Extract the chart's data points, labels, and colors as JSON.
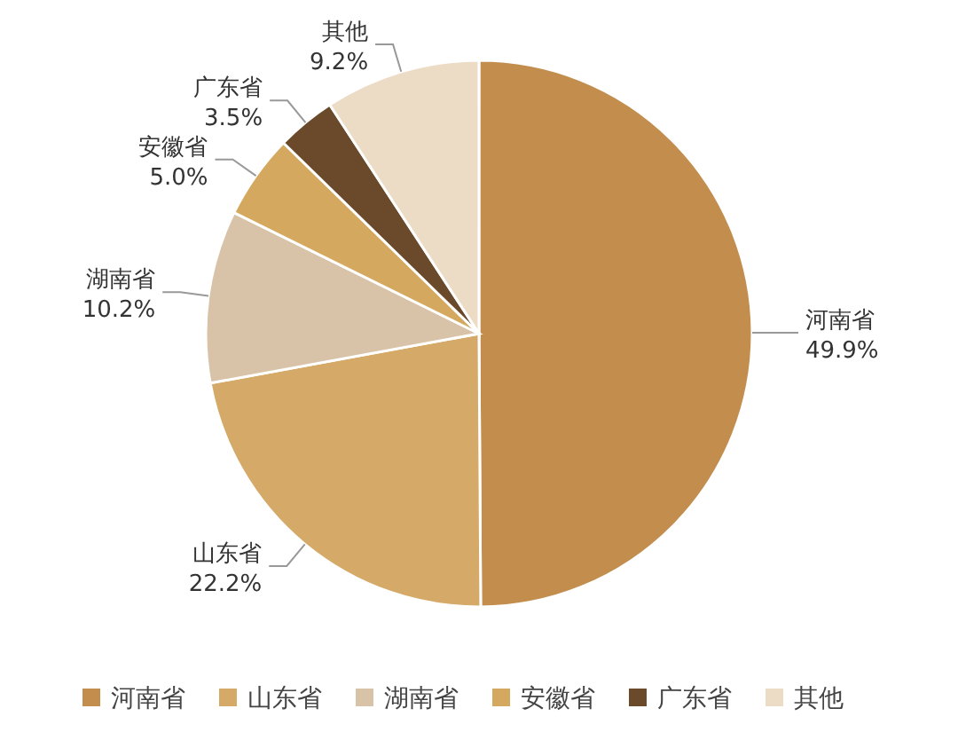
{
  "chart_data": {
    "type": "pie",
    "categories": [
      "河南省",
      "山东省",
      "湖南省",
      "安徽省",
      "广东省",
      "其他"
    ],
    "values": [
      49.9,
      22.2,
      10.2,
      5.0,
      3.5,
      9.2
    ],
    "value_labels": [
      "49.9%",
      "22.2%",
      "10.2%",
      "5.0%",
      "3.5%",
      "9.2%"
    ],
    "colors": [
      "#c28d4d",
      "#d5aa68",
      "#d8c3a8",
      "#d4a95f",
      "#6b4a2b",
      "#ecdcc6"
    ],
    "legend": "bottom"
  }
}
